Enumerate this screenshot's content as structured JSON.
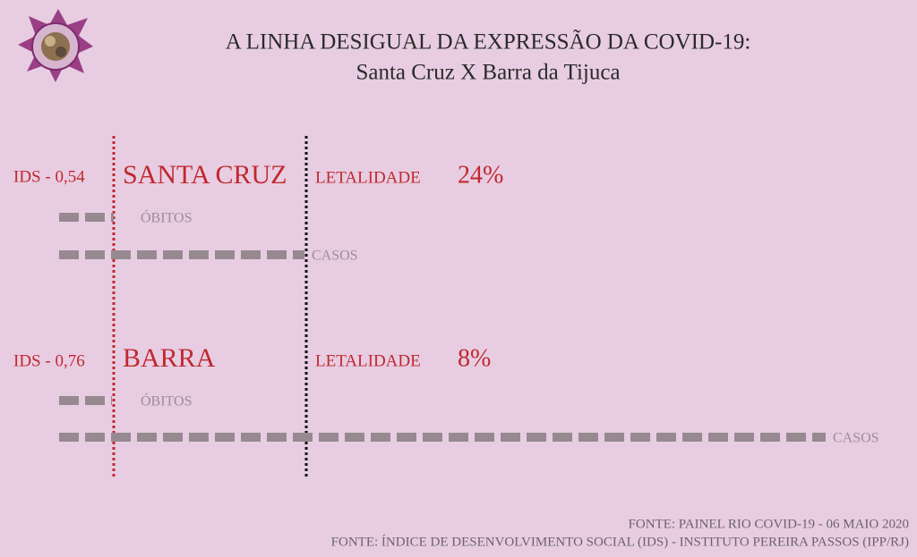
{
  "header": {
    "title": "A LINHA DESIGUAL DA EXPRESSÃO DA COVID-19:",
    "subtitle": "Santa Cruz X Barra da Tijuca"
  },
  "regions": [
    {
      "ids": "IDS - 0,54",
      "name": "SANTA CRUZ",
      "lethality_label": "LETALIDADE",
      "lethality": "24%",
      "deaths_label": "ÓBITOS",
      "cases_label": "CASOS"
    },
    {
      "ids": "IDS - 0,76",
      "name": "BARRA",
      "lethality_label": "LETALIDADE",
      "lethality": "8%",
      "deaths_label": "ÓBITOS",
      "cases_label": "CASOS"
    }
  ],
  "sources": [
    "FONTE: PAINEL RIO COVID-19 - 06 MAIO 2020",
    "FONTE: ÍNDICE DE DESENVOLVIMENTO SOCIAL (IDS) - INSTITUTO PEREIRA PASSOS (IPP/RJ)"
  ]
}
